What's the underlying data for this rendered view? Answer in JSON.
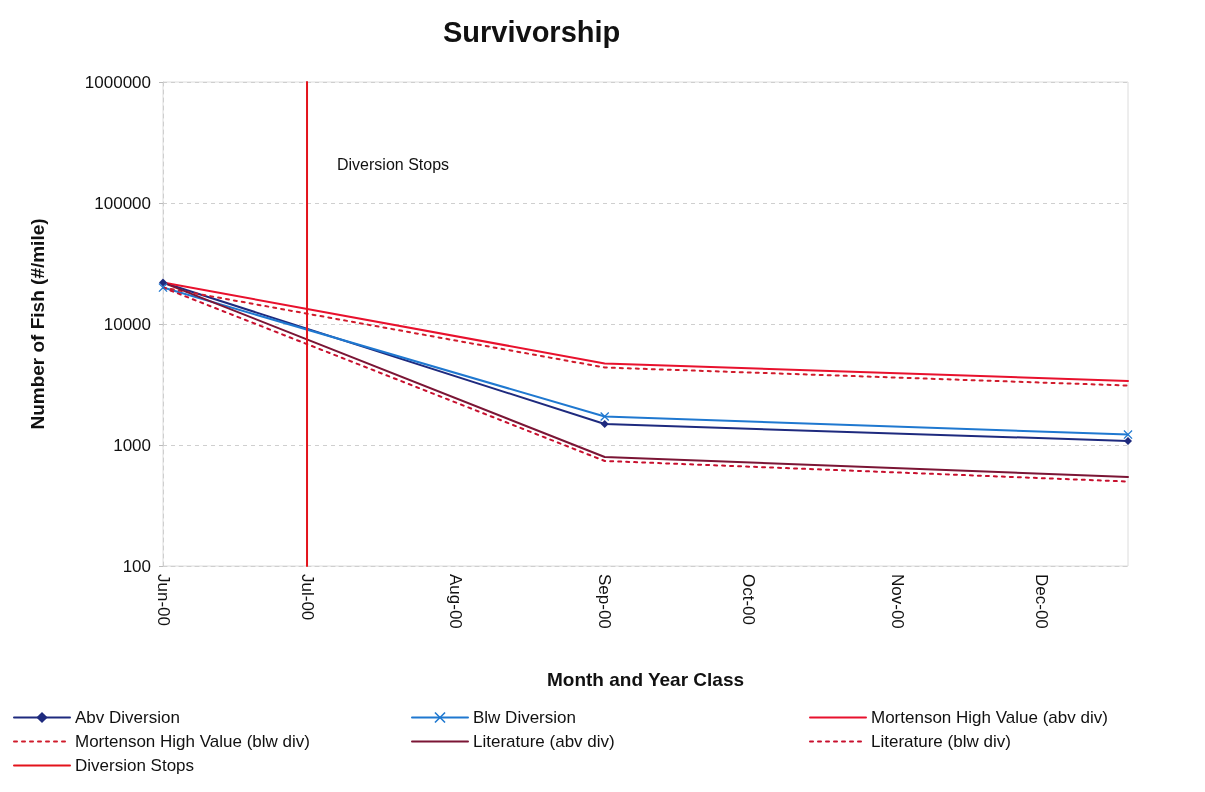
{
  "chart_data": {
    "type": "line",
    "title": "Survivorship",
    "xlabel": "Month and Year Class",
    "ylabel": "Number of Fish (#/mile)",
    "x": [
      "2000-06-01",
      "2000-09-01",
      "2000-12-19"
    ],
    "series": [
      {
        "name": "Abv Diversion",
        "color": "#1e2a7e",
        "values": [
          22000,
          1490,
          1080
        ],
        "marker": "diamond",
        "line_style": "solid"
      },
      {
        "name": "Blw Diversion",
        "color": "#1f78d0",
        "values": [
          20000,
          1720,
          1220
        ],
        "marker": "cross",
        "line_style": "solid"
      },
      {
        "name": "Mortenson High Value (abv div)",
        "color": "#e8112d",
        "values": [
          22000,
          4720,
          3380
        ],
        "marker": "none",
        "line_style": "solid"
      },
      {
        "name": "Mortenson High Value (blw div)",
        "color": "#d01c2c",
        "values": [
          20000,
          4370,
          3100
        ],
        "marker": "none",
        "line_style": "dotted"
      },
      {
        "name": "Literature (abv div)",
        "color": "#7b1535",
        "values": [
          22000,
          796,
          544
        ],
        "marker": "none",
        "line_style": "solid"
      },
      {
        "name": "Literature (blw div)",
        "color": "#c8102e",
        "values": [
          20000,
          738,
          499
        ],
        "marker": "none",
        "line_style": "dotted"
      },
      {
        "name": "Diversion Stops",
        "color": "#e3131b",
        "x": [
          "2000-07-01",
          "2000-07-01"
        ],
        "values": [
          100,
          1000000
        ],
        "marker": "none",
        "line_style": "solid"
      }
    ],
    "annotations": [
      "Diversion Stops"
    ],
    "xlim": [
      "2000-06-01",
      "2000-12-19"
    ],
    "xticks": [
      {
        "value": "2000-06-01",
        "label": "Jun-00"
      },
      {
        "value": "2000-07-01",
        "label": "Jul-00"
      },
      {
        "value": "2000-08-01",
        "label": "Aug-00"
      },
      {
        "value": "2000-09-01",
        "label": "Sep-00"
      },
      {
        "value": "2000-10-01",
        "label": "Oct-00"
      },
      {
        "value": "2000-11-01",
        "label": "Nov-00"
      },
      {
        "value": "2000-12-01",
        "label": "Dec-00"
      }
    ],
    "ylim": [
      100,
      1000000
    ],
    "yticks": [
      100,
      1000,
      10000,
      100000,
      1000000
    ],
    "log": "y",
    "grid": "y",
    "legend": "bottom"
  }
}
